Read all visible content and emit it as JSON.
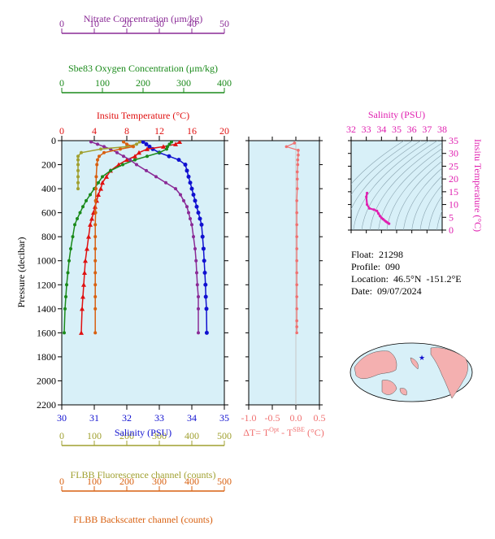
{
  "colors": {
    "nitrate": "#8a2a96",
    "oxygen": "#1a8a1a",
    "temperature": "#e01010",
    "salinity": "#1010d0",
    "fluorescence": "#a0a030",
    "backscatter": "#d86010",
    "delta": "#f07070",
    "ts": "#e020b0",
    "plot_bg": "#d8f0f8"
  },
  "info": {
    "float": "Float:  21298",
    "profile": "Profile:  090",
    "location": "Location:  46.5°N  -151.2°E",
    "date": "Date:  09/07/2024"
  },
  "map": {
    "marker": "★"
  },
  "chart_data": [
    {
      "type": "line",
      "panel": "main-profile",
      "ylabel": "Pressure (decibar)",
      "ylim": [
        2200,
        0
      ],
      "yticks": [
        0,
        200,
        400,
        600,
        800,
        1000,
        1200,
        1400,
        1600,
        1800,
        2000,
        2200
      ],
      "grid": false,
      "axes": {
        "nitrate": {
          "label": "Nitrate Concentration (μm/kg)",
          "lim": [
            0,
            50
          ],
          "ticks": [
            0,
            10,
            20,
            30,
            40,
            50
          ]
        },
        "oxygen": {
          "label": "Sbe83 Oxygen Concentration (μm/kg)",
          "lim": [
            0,
            400
          ],
          "ticks": [
            0,
            100,
            200,
            300,
            400
          ]
        },
        "temperature": {
          "label": "Insitu Temperature (°C)",
          "lim": [
            0,
            20
          ],
          "ticks": [
            0,
            4,
            8,
            12,
            16,
            20
          ]
        },
        "salinity": {
          "label": "Salinity (PSU)",
          "lim": [
            30,
            35
          ],
          "ticks": [
            30,
            31,
            32,
            33,
            34,
            35
          ]
        },
        "fluorescence": {
          "label": "FLBB Fluorescence channel (counts)",
          "lim": [
            0,
            500
          ],
          "ticks": [
            0,
            100,
            200,
            300,
            400,
            500
          ]
        },
        "backscatter": {
          "label": "FLBB Backscatter channel (counts)",
          "lim": [
            0,
            500
          ],
          "ticks": [
            0,
            100,
            200,
            300,
            400,
            500
          ]
        }
      },
      "series": [
        {
          "axis": "salinity",
          "color": "#1010d0",
          "x": [
            32.5,
            32.6,
            32.7,
            32.8,
            33.0,
            33.3,
            33.6,
            33.8,
            33.85,
            33.9,
            33.95,
            34.0,
            34.05,
            34.1,
            34.15,
            34.2,
            34.25,
            34.3,
            34.33,
            34.36,
            34.38,
            34.4,
            34.42,
            34.43,
            34.45,
            34.46
          ],
          "y": [
            10,
            30,
            50,
            70,
            100,
            130,
            160,
            200,
            250,
            300,
            350,
            400,
            450,
            500,
            550,
            600,
            650,
            700,
            800,
            900,
            1000,
            1100,
            1200,
            1300,
            1400,
            1600
          ]
        },
        {
          "axis": "temperature",
          "color": "#e01010",
          "x": [
            14.5,
            14.0,
            12.5,
            10.5,
            9.5,
            9.0,
            8.0,
            7.0,
            6.0,
            5.5,
            5.0,
            4.8,
            4.5,
            4.3,
            4.1,
            3.9,
            3.7,
            3.5,
            3.3,
            3.1,
            2.9,
            2.8,
            2.7,
            2.6,
            2.5,
            2.4
          ],
          "y": [
            10,
            30,
            50,
            70,
            100,
            130,
            160,
            200,
            250,
            300,
            350,
            400,
            450,
            500,
            550,
            600,
            650,
            700,
            800,
            900,
            1000,
            1100,
            1200,
            1300,
            1400,
            1600
          ]
        },
        {
          "axis": "oxygen",
          "color": "#1a8a1a",
          "x": [
            270,
            265,
            260,
            258,
            240,
            210,
            180,
            150,
            120,
            100,
            90,
            80,
            70,
            60,
            52,
            45,
            38,
            32,
            27,
            22,
            18,
            15,
            12,
            10,
            8,
            6
          ],
          "y": [
            10,
            30,
            50,
            70,
            100,
            130,
            160,
            200,
            250,
            300,
            350,
            400,
            450,
            500,
            550,
            600,
            650,
            700,
            800,
            900,
            1000,
            1100,
            1200,
            1300,
            1400,
            1600
          ]
        },
        {
          "axis": "nitrate",
          "color": "#8a2a96",
          "x": [
            9,
            11,
            13,
            15,
            17,
            19,
            21,
            23,
            26,
            29,
            32,
            35,
            36.5,
            37.5,
            38.5,
            39,
            39.5,
            40,
            40.5,
            41,
            41.3,
            41.5,
            41.7,
            42,
            42,
            42
          ],
          "y": [
            10,
            30,
            50,
            70,
            100,
            130,
            160,
            200,
            250,
            300,
            350,
            400,
            450,
            500,
            550,
            600,
            650,
            700,
            800,
            900,
            1000,
            1100,
            1200,
            1300,
            1400,
            1600
          ]
        },
        {
          "axis": "fluorescence",
          "color": "#a0a030",
          "x": [
            240,
            230,
            200,
            120,
            60,
            50,
            50,
            50,
            50,
            50,
            50,
            50
          ],
          "y": [
            10,
            30,
            50,
            70,
            100,
            130,
            160,
            200,
            250,
            300,
            350,
            400
          ]
        },
        {
          "axis": "backscatter",
          "color": "#d86010",
          "x": [
            190,
            200,
            220,
            180,
            130,
            115,
            110,
            108,
            106,
            105,
            104,
            104,
            103,
            103,
            103,
            103,
            103,
            103,
            103,
            103,
            103
          ],
          "y": [
            10,
            30,
            50,
            70,
            100,
            130,
            160,
            200,
            300,
            400,
            500,
            600,
            700,
            800,
            900,
            1000,
            1100,
            1200,
            1300,
            1400,
            1600
          ]
        }
      ]
    },
    {
      "type": "line",
      "panel": "delta-temperature",
      "xlabel": "ΔT= T",
      "xlabel_sup1": "Opt",
      "xlabel_mid": " - T",
      "xlabel_sup2": "SBE",
      "xlabel_end": " (°C)",
      "xlim": [
        -1.0,
        0.5
      ],
      "xticks": [
        -1.0,
        -0.5,
        0.0,
        0.5
      ],
      "xtick_labels": [
        "-1.0",
        "-0.5",
        "0.0",
        "0.5"
      ],
      "ylim": [
        2200,
        0
      ],
      "series": [
        {
          "color": "#f07070",
          "x": [
            -0.03,
            -0.2,
            0.05,
            0.05,
            0.04,
            0.04,
            0.03,
            0.03,
            0.03,
            0.02,
            0.02,
            0.02,
            0.02,
            0.02,
            0.02,
            0.02,
            0.02,
            0.02,
            0.02,
            0.02,
            0.02,
            0.02
          ],
          "y": [
            20,
            50,
            80,
            120,
            160,
            200,
            260,
            320,
            400,
            500,
            600,
            700,
            800,
            900,
            1000,
            1100,
            1200,
            1300,
            1400,
            1500,
            1550,
            1600
          ]
        }
      ]
    },
    {
      "type": "line",
      "panel": "ts-diagram",
      "xlabel": "Salinity (PSU)",
      "ylabel": "Insitu Temperature (°C)",
      "xlim": [
        32,
        38
      ],
      "xticks": [
        32,
        33,
        34,
        35,
        36,
        37,
        38
      ],
      "ylim": [
        0,
        35
      ],
      "yticks": [
        0,
        5,
        10,
        15,
        20,
        25,
        30,
        35
      ],
      "series": [
        {
          "color": "#e020b0",
          "x": [
            33.05,
            33.0,
            33.05,
            33.2,
            33.5,
            33.7,
            33.8,
            33.9,
            34.0,
            34.1,
            34.2,
            34.3,
            34.4,
            34.5
          ],
          "y": [
            14.5,
            13.0,
            10.0,
            8.5,
            8.0,
            7.5,
            6.5,
            5.5,
            4.8,
            4.3,
            3.8,
            3.3,
            2.9,
            2.5
          ]
        }
      ]
    }
  ]
}
